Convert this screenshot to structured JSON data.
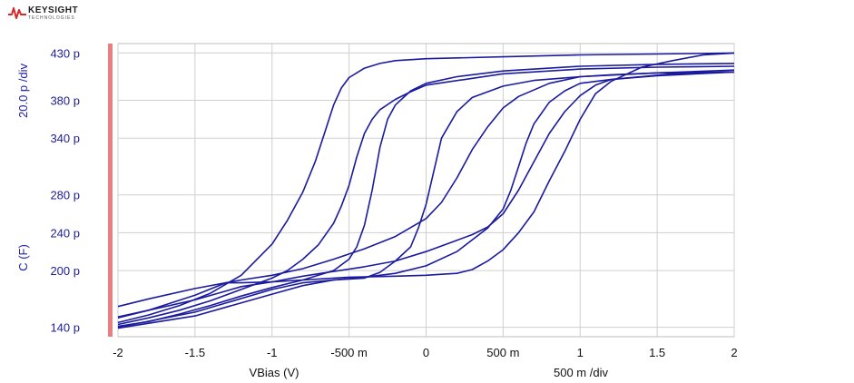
{
  "logo": {
    "name": "KEYSIGHT",
    "subtitle": "TECHNOLOGIES",
    "icon": "keysight-wave-icon"
  },
  "chart_data": {
    "type": "line",
    "xlabel": "VBias (V)",
    "x_div_label": "500 m /div",
    "ylabel": "C (F)",
    "y_div_label": "20.0 p /div",
    "xlim": [
      -2,
      2
    ],
    "ylim": [
      130,
      440
    ],
    "grid": true,
    "x_ticks": [
      {
        "v": -2,
        "label": "-2"
      },
      {
        "v": -1.5,
        "label": "-1.5"
      },
      {
        "v": -1,
        "label": "-1"
      },
      {
        "v": -0.5,
        "label": "-500 m"
      },
      {
        "v": 0,
        "label": "0"
      },
      {
        "v": 0.5,
        "label": "500 m"
      },
      {
        "v": 1,
        "label": "1"
      },
      {
        "v": 1.5,
        "label": "1.5"
      },
      {
        "v": 2,
        "label": "2"
      }
    ],
    "y_ticks": [
      {
        "v": 140,
        "label": "140 p"
      },
      {
        "v": 200,
        "label": "200 p"
      },
      {
        "v": 240,
        "label": "240 p"
      },
      {
        "v": 280,
        "label": "280 p"
      },
      {
        "v": 340,
        "label": "340 p"
      },
      {
        "v": 380,
        "label": "380 p"
      },
      {
        "v": 430,
        "label": "430 p"
      }
    ],
    "line_color": "#1a1a9e",
    "cursor_color": "#e88080",
    "series": [
      {
        "x": [
          -2,
          -1.8,
          -1.6,
          -1.4,
          -1.2,
          -1,
          -0.9,
          -0.8,
          -0.72,
          -0.66,
          -0.6,
          -0.55,
          -0.5,
          -0.4,
          -0.3,
          -0.2,
          0,
          0.5,
          1,
          1.5,
          2
        ],
        "y": [
          145,
          153,
          163,
          176,
          195,
          228,
          253,
          283,
          315,
          345,
          375,
          393,
          404,
          414,
          419,
          422,
          424,
          426,
          428,
          429,
          430
        ]
      },
      {
        "x": [
          -2,
          -1.8,
          -1.6,
          -1.4,
          -1.2,
          -1,
          -0.9,
          -0.8,
          -0.7,
          -0.6,
          -0.55,
          -0.5,
          -0.45,
          -0.4,
          -0.35,
          -0.3,
          -0.2,
          -0.1,
          0,
          0.5,
          1,
          1.5,
          2
        ],
        "y": [
          143,
          150,
          158,
          168,
          180,
          192,
          200,
          212,
          227,
          250,
          268,
          290,
          320,
          345,
          360,
          370,
          381,
          389,
          396,
          408,
          413,
          415,
          416
        ]
      },
      {
        "x": [
          -2,
          -1.8,
          -1.6,
          -1.4,
          -1.2,
          -1,
          -0.8,
          -0.6,
          -0.5,
          -0.45,
          -0.4,
          -0.35,
          -0.3,
          -0.25,
          -0.2,
          -0.1,
          0,
          0.2,
          0.5,
          1,
          1.5,
          2
        ],
        "y": [
          141,
          146,
          154,
          163,
          173,
          182,
          190,
          200,
          212,
          225,
          248,
          285,
          330,
          360,
          375,
          390,
          398,
          405,
          411,
          416,
          418,
          419
        ]
      },
      {
        "x": [
          -2,
          -1.5,
          -1,
          -0.8,
          -0.6,
          -0.4,
          -0.3,
          -0.2,
          -0.1,
          -0.05,
          0,
          0.05,
          0.1,
          0.2,
          0.3,
          0.5,
          0.7,
          1,
          1.5,
          2
        ],
        "y": [
          140,
          156,
          180,
          187,
          190,
          192,
          198,
          210,
          225,
          245,
          270,
          305,
          340,
          368,
          383,
          395,
          401,
          405,
          409,
          412
        ]
      },
      {
        "x": [
          -2,
          -1.5,
          -1,
          -0.8,
          -0.6,
          -0.4,
          -0.2,
          0,
          0.2,
          0.4,
          0.5,
          0.55,
          0.6,
          0.65,
          0.7,
          0.8,
          0.9,
          1,
          1.2,
          1.5,
          2
        ],
        "y": [
          139,
          152,
          175,
          184,
          190,
          193,
          197,
          205,
          220,
          245,
          265,
          285,
          310,
          335,
          355,
          378,
          390,
          398,
          402,
          406,
          410
        ]
      },
      {
        "x": [
          2,
          1.8,
          1.6,
          1.4,
          1.2,
          1.1,
          1,
          0.9,
          0.8,
          0.7,
          0.6,
          0.5,
          0.4,
          0.3,
          0.2,
          0.1,
          0,
          -0.2,
          -0.5,
          -0.8,
          -1,
          -1.2,
          -1.3,
          -1.5,
          -1.8,
          -2
        ],
        "y": [
          430,
          428,
          422,
          415,
          400,
          387,
          360,
          326,
          295,
          262,
          240,
          222,
          210,
          201,
          197,
          196,
          195,
          194,
          193,
          190,
          188,
          187,
          187,
          174,
          158,
          150
        ]
      },
      {
        "x": [
          2,
          1.6,
          1.2,
          1.1,
          1,
          0.9,
          0.8,
          0.7,
          0.6,
          0.5,
          0.4,
          0.3,
          0.2,
          0.1,
          0,
          -0.2,
          -0.4,
          -0.6,
          -0.8,
          -1,
          -1.2,
          -1.5,
          -1.8,
          -2
        ],
        "y": [
          410,
          408,
          402,
          396,
          385,
          368,
          345,
          315,
          285,
          260,
          246,
          238,
          232,
          226,
          220,
          210,
          204,
          199,
          194,
          188,
          183,
          169,
          158,
          151
        ]
      },
      {
        "x": [
          2,
          1.5,
          1.2,
          1,
          0.8,
          0.6,
          0.5,
          0.4,
          0.3,
          0.2,
          0.1,
          0,
          -0.2,
          -0.4,
          -0.6,
          -0.8,
          -1,
          -1.2,
          -1.5,
          -1.8,
          -2
        ],
        "y": [
          410,
          409,
          407,
          405,
          398,
          384,
          372,
          352,
          328,
          298,
          272,
          255,
          236,
          223,
          212,
          202,
          195,
          190,
          181,
          170,
          162
        ]
      }
    ]
  }
}
